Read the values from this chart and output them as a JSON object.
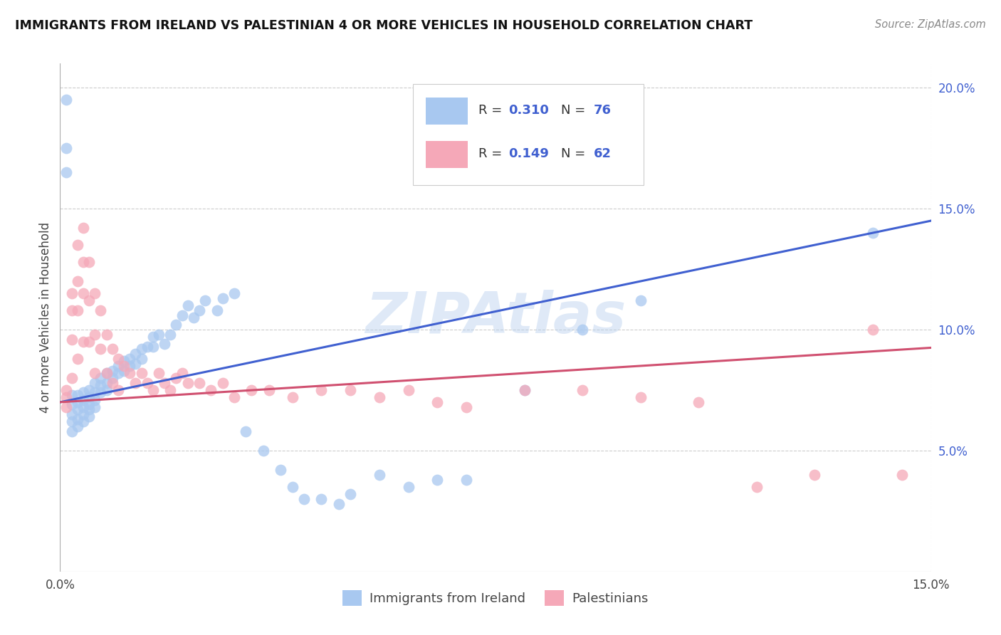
{
  "title": "IMMIGRANTS FROM IRELAND VS PALESTINIAN 4 OR MORE VEHICLES IN HOUSEHOLD CORRELATION CHART",
  "source": "Source: ZipAtlas.com",
  "ylabel": "4 or more Vehicles in Household",
  "xlim": [
    0.0,
    0.15
  ],
  "ylim": [
    0.0,
    0.21
  ],
  "yticks_right": [
    0.05,
    0.1,
    0.15,
    0.2
  ],
  "ytick_labels_right": [
    "5.0%",
    "10.0%",
    "15.0%",
    "20.0%"
  ],
  "legend_r1": "0.310",
  "legend_n1": "76",
  "legend_r2": "0.149",
  "legend_n2": "62",
  "color_blue": "#a8c8f0",
  "color_pink": "#f5a8b8",
  "color_line_blue": "#4060d0",
  "color_line_pink": "#d05070",
  "watermark": "ZIPAtlas",
  "ireland_x": [
    0.001,
    0.001,
    0.001,
    0.002,
    0.002,
    0.002,
    0.002,
    0.002,
    0.003,
    0.003,
    0.003,
    0.003,
    0.003,
    0.004,
    0.004,
    0.004,
    0.004,
    0.004,
    0.005,
    0.005,
    0.005,
    0.005,
    0.005,
    0.006,
    0.006,
    0.006,
    0.006,
    0.007,
    0.007,
    0.007,
    0.008,
    0.008,
    0.008,
    0.009,
    0.009,
    0.01,
    0.01,
    0.011,
    0.011,
    0.012,
    0.012,
    0.013,
    0.013,
    0.014,
    0.014,
    0.015,
    0.016,
    0.016,
    0.017,
    0.018,
    0.019,
    0.02,
    0.021,
    0.022,
    0.023,
    0.024,
    0.025,
    0.027,
    0.028,
    0.03,
    0.032,
    0.035,
    0.038,
    0.04,
    0.042,
    0.045,
    0.048,
    0.05,
    0.055,
    0.06,
    0.065,
    0.07,
    0.08,
    0.09,
    0.1,
    0.14
  ],
  "ireland_y": [
    0.195,
    0.175,
    0.165,
    0.073,
    0.069,
    0.065,
    0.062,
    0.058,
    0.073,
    0.07,
    0.067,
    0.063,
    0.06,
    0.074,
    0.071,
    0.068,
    0.065,
    0.062,
    0.075,
    0.072,
    0.069,
    0.067,
    0.064,
    0.078,
    0.074,
    0.071,
    0.068,
    0.08,
    0.077,
    0.074,
    0.082,
    0.078,
    0.075,
    0.083,
    0.08,
    0.085,
    0.082,
    0.087,
    0.083,
    0.088,
    0.085,
    0.09,
    0.086,
    0.092,
    0.088,
    0.093,
    0.097,
    0.093,
    0.098,
    0.094,
    0.098,
    0.102,
    0.106,
    0.11,
    0.105,
    0.108,
    0.112,
    0.108,
    0.113,
    0.115,
    0.058,
    0.05,
    0.042,
    0.035,
    0.03,
    0.03,
    0.028,
    0.032,
    0.04,
    0.035,
    0.038,
    0.038,
    0.075,
    0.1,
    0.112,
    0.14
  ],
  "palest_x": [
    0.001,
    0.001,
    0.001,
    0.002,
    0.002,
    0.002,
    0.002,
    0.003,
    0.003,
    0.003,
    0.003,
    0.004,
    0.004,
    0.004,
    0.004,
    0.005,
    0.005,
    0.005,
    0.006,
    0.006,
    0.006,
    0.007,
    0.007,
    0.008,
    0.008,
    0.009,
    0.009,
    0.01,
    0.01,
    0.011,
    0.012,
    0.013,
    0.014,
    0.015,
    0.016,
    0.017,
    0.018,
    0.019,
    0.02,
    0.021,
    0.022,
    0.024,
    0.026,
    0.028,
    0.03,
    0.033,
    0.036,
    0.04,
    0.045,
    0.05,
    0.055,
    0.06,
    0.065,
    0.07,
    0.08,
    0.09,
    0.1,
    0.11,
    0.12,
    0.13,
    0.14,
    0.145
  ],
  "palest_y": [
    0.075,
    0.072,
    0.068,
    0.115,
    0.108,
    0.096,
    0.08,
    0.135,
    0.12,
    0.108,
    0.088,
    0.142,
    0.128,
    0.115,
    0.095,
    0.128,
    0.112,
    0.095,
    0.115,
    0.098,
    0.082,
    0.108,
    0.092,
    0.098,
    0.082,
    0.092,
    0.078,
    0.088,
    0.075,
    0.085,
    0.082,
    0.078,
    0.082,
    0.078,
    0.075,
    0.082,
    0.078,
    0.075,
    0.08,
    0.082,
    0.078,
    0.078,
    0.075,
    0.078,
    0.072,
    0.075,
    0.075,
    0.072,
    0.075,
    0.075,
    0.072,
    0.075,
    0.07,
    0.068,
    0.075,
    0.075,
    0.072,
    0.07,
    0.035,
    0.04,
    0.1,
    0.04
  ]
}
